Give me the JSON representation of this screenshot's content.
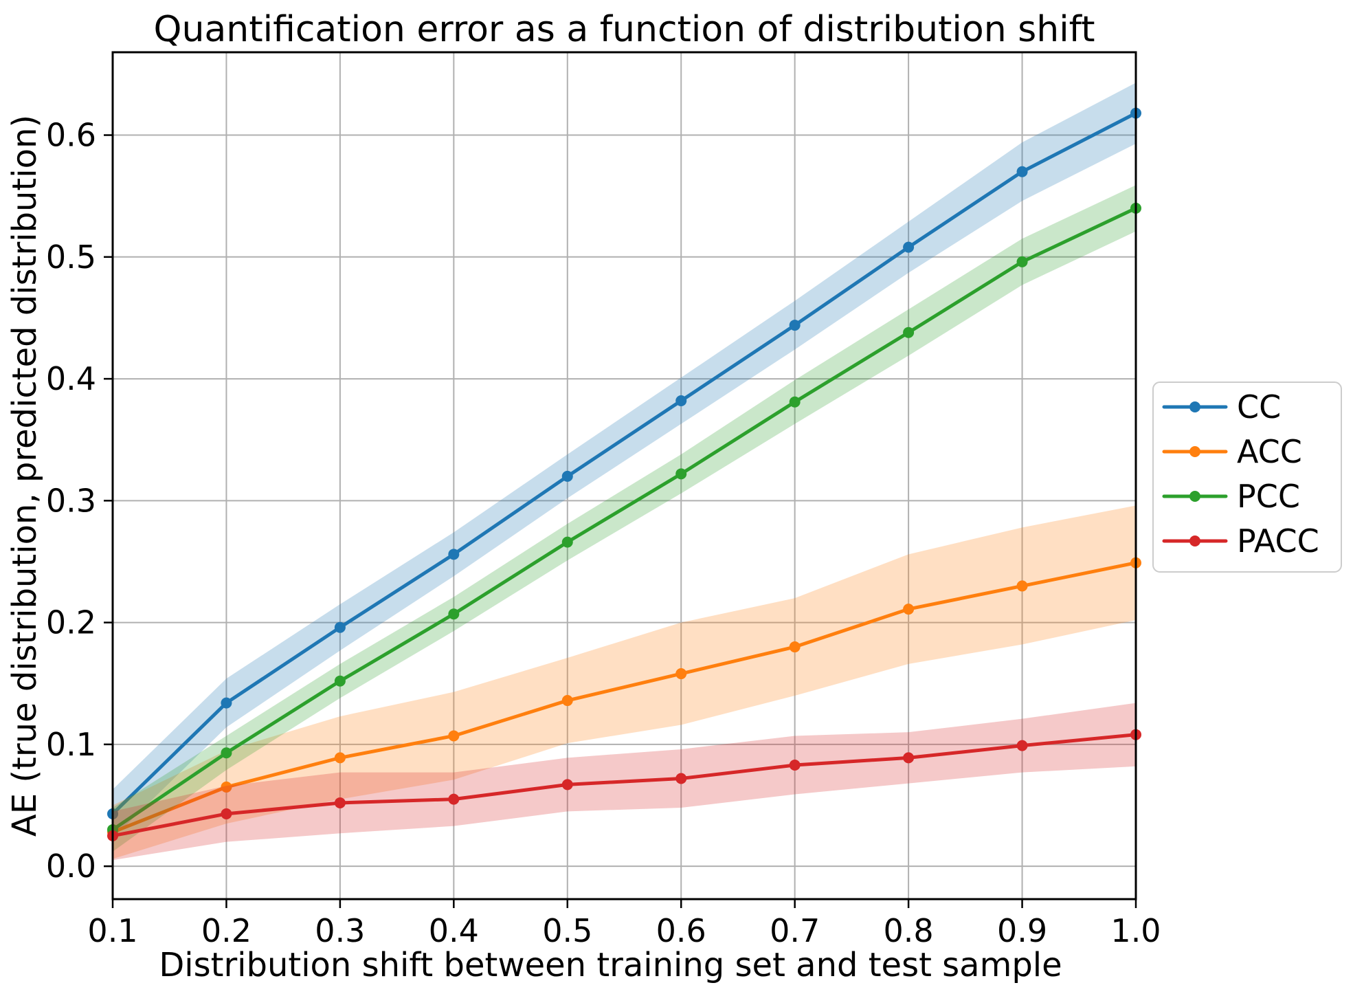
{
  "chart_data": {
    "type": "line",
    "title": "Quantification error as a function of distribution shift",
    "xlabel": "Distribution shift between training set and test sample",
    "ylabel": "AE (true distribution, predicted distribution)",
    "x": [
      0.1,
      0.2,
      0.3,
      0.4,
      0.5,
      0.6,
      0.7,
      0.8,
      0.9,
      1.0
    ],
    "xtick_labels": [
      "0.1",
      "0.2",
      "0.3",
      "0.4",
      "0.5",
      "0.6",
      "0.7",
      "0.8",
      "0.9",
      "1.0"
    ],
    "ytick_values": [
      0.0,
      0.1,
      0.2,
      0.3,
      0.4,
      0.5,
      0.6
    ],
    "ytick_labels": [
      "0.0",
      "0.1",
      "0.2",
      "0.3",
      "0.4",
      "0.5",
      "0.6"
    ],
    "xlim": [
      0.1,
      1.0
    ],
    "ylim": [
      -0.027,
      0.668
    ],
    "grid": true,
    "grid_color": "#b0b0b0",
    "spine_color": "#000000",
    "band_alpha": 0.25,
    "legend_position": "right-outside",
    "series": [
      {
        "name": "CC",
        "color": "#1f77b4",
        "values": [
          0.043,
          0.134,
          0.196,
          0.256,
          0.32,
          0.382,
          0.444,
          0.508,
          0.57,
          0.618
        ],
        "band_halfwidth": [
          0.02,
          0.02,
          0.019,
          0.018,
          0.018,
          0.019,
          0.02,
          0.021,
          0.024,
          0.025
        ]
      },
      {
        "name": "ACC",
        "color": "#ff7f0e",
        "values": [
          0.028,
          0.065,
          0.089,
          0.107,
          0.136,
          0.158,
          0.18,
          0.211,
          0.23,
          0.249
        ],
        "band_halfwidth": [
          0.022,
          0.03,
          0.034,
          0.036,
          0.035,
          0.042,
          0.04,
          0.045,
          0.048,
          0.047
        ]
      },
      {
        "name": "PCC",
        "color": "#2ca02c",
        "values": [
          0.03,
          0.093,
          0.152,
          0.207,
          0.266,
          0.322,
          0.381,
          0.438,
          0.496,
          0.54
        ],
        "band_halfwidth": [
          0.018,
          0.014,
          0.014,
          0.014,
          0.015,
          0.016,
          0.018,
          0.019,
          0.019,
          0.019
        ]
      },
      {
        "name": "PACC",
        "color": "#d62728",
        "values": [
          0.025,
          0.043,
          0.052,
          0.055,
          0.067,
          0.072,
          0.083,
          0.089,
          0.099,
          0.108
        ],
        "band_halfwidth": [
          0.02,
          0.023,
          0.025,
          0.022,
          0.022,
          0.024,
          0.024,
          0.021,
          0.022,
          0.026
        ]
      }
    ]
  }
}
